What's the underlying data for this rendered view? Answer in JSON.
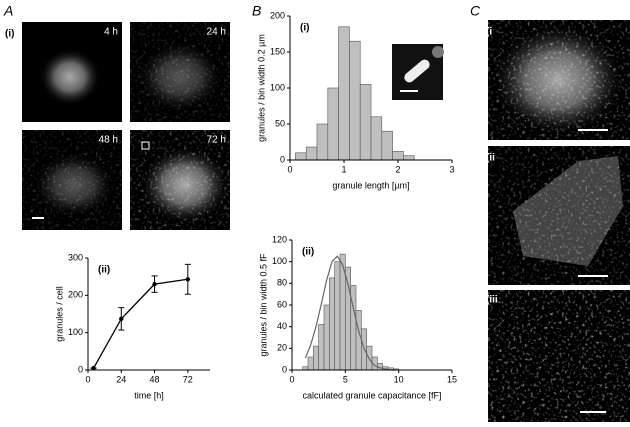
{
  "panels": {
    "A": "A",
    "B": "B",
    "C": "C"
  },
  "images": {
    "a_i": "(i)",
    "a_4h": "4 h",
    "a_24h": "24 h",
    "a_48h": "48 h",
    "a_72h": "72 h",
    "c_i": "(i",
    "c_ii": "(ii",
    "c_iii": "(iii"
  },
  "chart_data": [
    {
      "type": "line",
      "title": "(ii)",
      "xlabel": "time [h]",
      "ylabel": "granules / cell",
      "x": [
        4,
        24,
        48,
        72
      ],
      "values": [
        5,
        137,
        230,
        243
      ],
      "errors": [
        0,
        30,
        22,
        40
      ],
      "color": "#000000",
      "xlim": [
        0,
        88
      ],
      "xticks": [
        0,
        24,
        48,
        72
      ],
      "ylim": [
        0,
        300
      ],
      "yticks": [
        0,
        100,
        200,
        300
      ]
    },
    {
      "type": "histogram",
      "title": "(i)",
      "xlabel": "granule length [µm]",
      "ylabel": "granules / bin width 0.2 µm",
      "bins": [
        0.1,
        0.3,
        0.5,
        0.7,
        0.9,
        1.1,
        1.3,
        1.5,
        1.7,
        1.9,
        2.1,
        2.3
      ],
      "values": [
        10,
        18,
        50,
        100,
        185,
        165,
        105,
        60,
        40,
        12,
        6
      ],
      "color": "#bfbfbf",
      "xlim": [
        0,
        3
      ],
      "xticks": [
        0,
        1,
        2,
        3
      ],
      "ylim": [
        0,
        200
      ],
      "yticks": [
        0,
        50,
        100,
        150,
        200
      ]
    },
    {
      "type": "histogram",
      "title": "(ii)",
      "xlabel": "calculated granule capacitance [fF]",
      "ylabel": "granules / bin width 0.5 fF",
      "bins": [
        1,
        1.5,
        2,
        2.5,
        3,
        3.5,
        4,
        4.5,
        5,
        5.5,
        6,
        6.5,
        7,
        7.5,
        8,
        8.5,
        9,
        9.5,
        10
      ],
      "values": [
        3,
        12,
        22,
        42,
        60,
        85,
        100,
        107,
        95,
        78,
        55,
        38,
        22,
        12,
        6,
        3,
        2,
        1
      ],
      "color": "#bfbfbf",
      "line": {
        "x": [
          1.25,
          1.75,
          2.25,
          2.75,
          3.25,
          3.75,
          4.25,
          4.75,
          5.25,
          5.75,
          6.25,
          6.75,
          7.25,
          7.75,
          8.25,
          8.75,
          9.25,
          9.75
        ],
        "values": [
          11,
          23,
          40,
          61,
          83,
          100,
          105,
          97,
          79,
          57,
          36,
          20,
          10,
          4,
          2,
          1,
          0,
          0
        ],
        "color": "#666666"
      },
      "xlim": [
        0,
        15
      ],
      "xticks": [
        0,
        5,
        10,
        15
      ],
      "ylim": [
        0,
        120
      ],
      "yticks": [
        0,
        20,
        40,
        60,
        80,
        100,
        120
      ]
    }
  ]
}
